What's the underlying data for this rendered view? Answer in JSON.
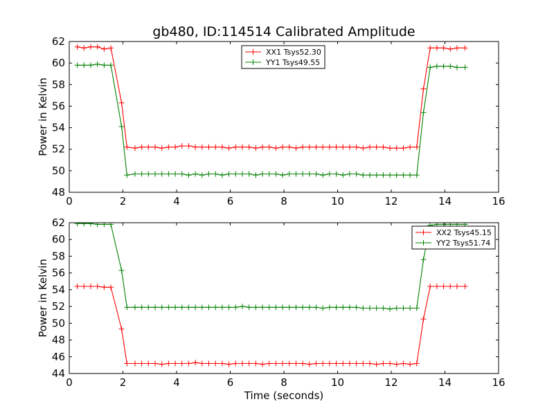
{
  "title": "gb480, ID:114514 Calibrated Amplitude",
  "colors": {
    "xx": "#ff0000",
    "yy": "#008000",
    "axes": "#000000",
    "background": "#ffffff"
  },
  "chart_data": [
    {
      "type": "line",
      "title": "gb480, ID:114514 Calibrated Amplitude",
      "xlabel": "",
      "ylabel": "Power in Kelvin",
      "xlim": [
        0,
        16
      ],
      "ylim": [
        48,
        62
      ],
      "xticks": [
        0,
        2,
        4,
        6,
        8,
        10,
        12,
        14,
        16
      ],
      "yticks": [
        48,
        50,
        52,
        54,
        56,
        58,
        60,
        62
      ],
      "grid": false,
      "legend_position": "top-center",
      "marker": "+",
      "x": [
        0.3,
        0.55,
        0.8,
        1.05,
        1.3,
        1.55,
        1.95,
        2.15,
        2.45,
        2.7,
        2.95,
        3.2,
        3.45,
        3.7,
        3.95,
        4.2,
        4.45,
        4.7,
        4.95,
        5.2,
        5.45,
        5.7,
        5.95,
        6.2,
        6.45,
        6.7,
        6.95,
        7.2,
        7.45,
        7.7,
        7.95,
        8.2,
        8.45,
        8.7,
        8.95,
        9.2,
        9.45,
        9.7,
        9.95,
        10.2,
        10.45,
        10.7,
        10.95,
        11.2,
        11.45,
        11.7,
        11.95,
        12.2,
        12.45,
        12.7,
        12.95,
        13.2,
        13.45,
        13.7,
        13.95,
        14.2,
        14.45,
        14.75
      ],
      "series": [
        {
          "name": "XX1 Tsys52.30",
          "color": "#ff0000",
          "values": [
            61.5,
            61.4,
            61.5,
            61.5,
            61.3,
            61.4,
            56.3,
            52.2,
            52.1,
            52.2,
            52.2,
            52.2,
            52.1,
            52.2,
            52.2,
            52.3,
            52.3,
            52.2,
            52.2,
            52.2,
            52.2,
            52.2,
            52.1,
            52.2,
            52.2,
            52.2,
            52.1,
            52.2,
            52.2,
            52.1,
            52.2,
            52.2,
            52.1,
            52.2,
            52.2,
            52.2,
            52.2,
            52.2,
            52.2,
            52.2,
            52.2,
            52.2,
            52.1,
            52.2,
            52.2,
            52.2,
            52.1,
            52.1,
            52.1,
            52.2,
            52.2,
            57.6,
            61.4,
            61.4,
            61.4,
            61.3,
            61.4,
            61.4
          ]
        },
        {
          "name": "YY1 Tsys49.55",
          "color": "#008000",
          "values": [
            59.8,
            59.8,
            59.8,
            59.9,
            59.8,
            59.8,
            54.1,
            49.6,
            49.7,
            49.7,
            49.7,
            49.7,
            49.7,
            49.7,
            49.7,
            49.7,
            49.6,
            49.7,
            49.6,
            49.7,
            49.7,
            49.6,
            49.7,
            49.7,
            49.7,
            49.7,
            49.6,
            49.7,
            49.7,
            49.7,
            49.6,
            49.7,
            49.7,
            49.7,
            49.7,
            49.7,
            49.6,
            49.7,
            49.7,
            49.6,
            49.7,
            49.7,
            49.6,
            49.6,
            49.6,
            49.6,
            49.6,
            49.6,
            49.6,
            49.6,
            49.6,
            55.4,
            59.6,
            59.7,
            59.7,
            59.7,
            59.6,
            59.6
          ]
        }
      ]
    },
    {
      "type": "line",
      "title": "",
      "xlabel": "Time (seconds)",
      "ylabel": "Power in Kelvin",
      "xlim": [
        0,
        16
      ],
      "ylim": [
        44,
        62
      ],
      "xticks": [
        0,
        2,
        4,
        6,
        8,
        10,
        12,
        14,
        16
      ],
      "yticks": [
        44,
        46,
        48,
        50,
        52,
        54,
        56,
        58,
        60,
        62
      ],
      "grid": false,
      "legend_position": "top-right",
      "marker": "+",
      "x": [
        0.3,
        0.55,
        0.8,
        1.05,
        1.3,
        1.55,
        1.95,
        2.15,
        2.45,
        2.7,
        2.95,
        3.2,
        3.45,
        3.7,
        3.95,
        4.2,
        4.45,
        4.7,
        4.95,
        5.2,
        5.45,
        5.7,
        5.95,
        6.2,
        6.45,
        6.7,
        6.95,
        7.2,
        7.45,
        7.7,
        7.95,
        8.2,
        8.45,
        8.7,
        8.95,
        9.2,
        9.45,
        9.7,
        9.95,
        10.2,
        10.45,
        10.7,
        10.95,
        11.2,
        11.45,
        11.7,
        11.95,
        12.2,
        12.45,
        12.7,
        12.95,
        13.2,
        13.45,
        13.7,
        13.95,
        14.2,
        14.45,
        14.75
      ],
      "series": [
        {
          "name": "XX2 Tsys45.15",
          "color": "#ff0000",
          "values": [
            54.4,
            54.4,
            54.4,
            54.4,
            54.3,
            54.3,
            49.3,
            45.2,
            45.2,
            45.2,
            45.2,
            45.2,
            45.1,
            45.2,
            45.2,
            45.2,
            45.2,
            45.3,
            45.2,
            45.2,
            45.2,
            45.2,
            45.1,
            45.2,
            45.2,
            45.2,
            45.2,
            45.1,
            45.2,
            45.2,
            45.2,
            45.2,
            45.2,
            45.2,
            45.1,
            45.2,
            45.2,
            45.2,
            45.2,
            45.2,
            45.2,
            45.2,
            45.2,
            45.2,
            45.1,
            45.2,
            45.2,
            45.1,
            45.2,
            45.1,
            45.2,
            50.5,
            54.4,
            54.4,
            54.4,
            54.4,
            54.4,
            54.4
          ]
        },
        {
          "name": "YY2 Tsys51.74",
          "color": "#008000",
          "values": [
            61.9,
            61.9,
            61.9,
            61.8,
            61.8,
            61.8,
            56.3,
            51.9,
            51.9,
            51.9,
            51.9,
            51.9,
            51.9,
            51.9,
            51.9,
            51.9,
            51.9,
            51.9,
            51.9,
            51.9,
            51.9,
            51.9,
            51.9,
            51.9,
            52.0,
            51.9,
            51.9,
            51.9,
            51.9,
            51.9,
            51.9,
            51.9,
            51.9,
            51.9,
            51.9,
            51.9,
            51.8,
            51.9,
            51.9,
            51.9,
            51.9,
            51.9,
            51.8,
            51.8,
            51.8,
            51.8,
            51.7,
            51.8,
            51.8,
            51.8,
            51.8,
            57.6,
            61.7,
            61.8,
            61.8,
            61.8,
            61.8,
            61.8
          ]
        }
      ]
    }
  ]
}
